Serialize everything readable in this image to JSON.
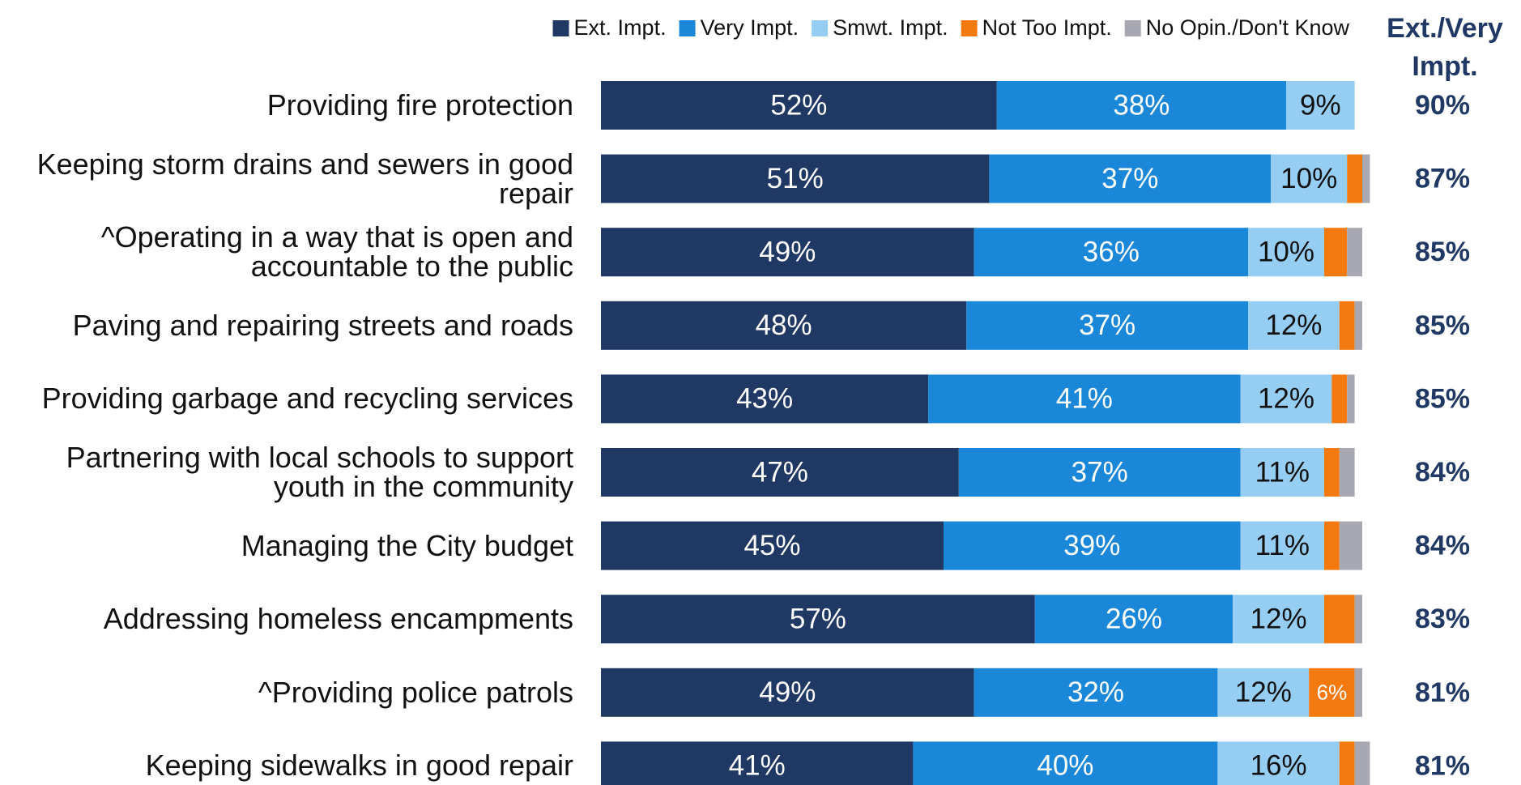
{
  "chart_data": {
    "type": "stacked-bar-horizontal",
    "categories": [
      "Providing fire protection",
      "Keeping storm drains and sewers in good repair",
      "^Operating in a way that is open and accountable to the public",
      "Paving and repairing streets and roads",
      "Providing garbage and recycling services",
      "Partnering with local schools to support youth in the community",
      "Managing the City budget",
      "Addressing homeless encampments",
      "^Providing police patrols",
      "Keeping sidewalks in good repair"
    ],
    "legend": "top",
    "series": [
      {
        "name": "Ext. Impt.",
        "color": "#1f3864",
        "label_color": "#ffffff",
        "values": [
          52,
          51,
          49,
          48,
          43,
          47,
          45,
          57,
          49,
          41
        ],
        "value_labels": [
          "52%",
          "51%",
          "49%",
          "48%",
          "43%",
          "47%",
          "45%",
          "57%",
          "49%",
          "41%"
        ]
      },
      {
        "name": "Very Impt.",
        "color": "#1b87d8",
        "label_color": "#ffffff",
        "values": [
          38,
          37,
          36,
          37,
          41,
          37,
          39,
          26,
          32,
          40
        ],
        "value_labels": [
          "38%",
          "37%",
          "36%",
          "37%",
          "41%",
          "37%",
          "39%",
          "26%",
          "32%",
          "40%"
        ]
      },
      {
        "name": "Smwt. Impt.",
        "color": "#96cdf2",
        "label_color": "#111111",
        "values": [
          9,
          10,
          10,
          12,
          12,
          11,
          11,
          12,
          12,
          16
        ],
        "value_labels": [
          "9%",
          "10%",
          "10%",
          "12%",
          "12%",
          "11%",
          "11%",
          "12%",
          "12%",
          "16%"
        ]
      },
      {
        "name": "Not Too Impt.",
        "color": "#f47a10",
        "label_color": "#ffffff",
        "values": [
          0,
          2,
          3,
          2,
          2,
          2,
          2,
          4,
          6,
          2
        ],
        "value_labels": [
          null,
          null,
          null,
          null,
          null,
          null,
          null,
          null,
          "6%",
          null
        ]
      },
      {
        "name": "No Opin./Don't Know",
        "color": "#a7a8b2",
        "label_color": "#ffffff",
        "values": [
          0,
          1,
          2,
          1,
          1,
          2,
          3,
          1,
          1,
          2
        ],
        "value_labels": [
          null,
          null,
          null,
          null,
          null,
          null,
          null,
          null,
          null,
          null
        ]
      }
    ],
    "totals": {
      "title": "Ext./Very Impt.",
      "color": "#1f3864",
      "values": [
        90,
        87,
        85,
        85,
        85,
        84,
        84,
        83,
        81,
        81
      ],
      "value_labels": [
        "90%",
        "87%",
        "85%",
        "85%",
        "85%",
        "84%",
        "84%",
        "83%",
        "81%",
        "81%"
      ]
    }
  }
}
